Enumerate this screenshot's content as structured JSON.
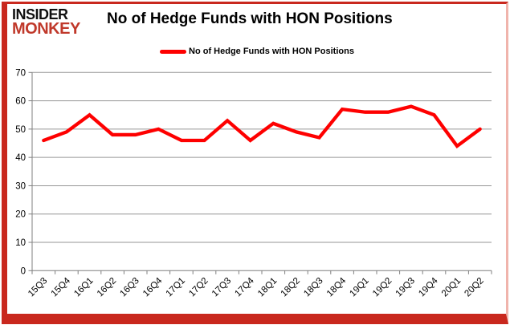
{
  "logo": {
    "line1": "INSIDER",
    "line2": "MONKEY"
  },
  "header": {
    "title": "No of Hedge Funds with HON Positions"
  },
  "legend": {
    "label": "No of Hedge Funds with HON Positions"
  },
  "colors": {
    "line": "#fe0000",
    "logo_accent": "#c0392b",
    "frame": "#c9281e",
    "frame_light": "#f0b4ac",
    "grid": "#969696",
    "axis": "#7f7f7f",
    "text": "#000000"
  },
  "chart_data": {
    "type": "line",
    "title": "No of Hedge Funds with HON Positions",
    "categories": [
      "15Q3",
      "15Q4",
      "16Q1",
      "16Q2",
      "16Q3",
      "16Q4",
      "17Q1",
      "17Q2",
      "17Q3",
      "17Q4",
      "18Q1",
      "18Q2",
      "18Q3",
      "18Q4",
      "19Q1",
      "19Q2",
      "19Q3",
      "19Q4",
      "20Q1",
      "20Q2"
    ],
    "series": [
      {
        "name": "No of Hedge Funds with HON Positions",
        "values": [
          46,
          49,
          55,
          48,
          48,
          50,
          46,
          46,
          53,
          46,
          52,
          49,
          47,
          57,
          56,
          56,
          58,
          55,
          44,
          50
        ]
      }
    ],
    "xlabel": "",
    "ylabel": "",
    "ylim": [
      0,
      70
    ],
    "yticks": [
      0,
      10,
      20,
      30,
      40,
      50,
      60,
      70
    ],
    "grid": true,
    "legend_position": "top"
  }
}
